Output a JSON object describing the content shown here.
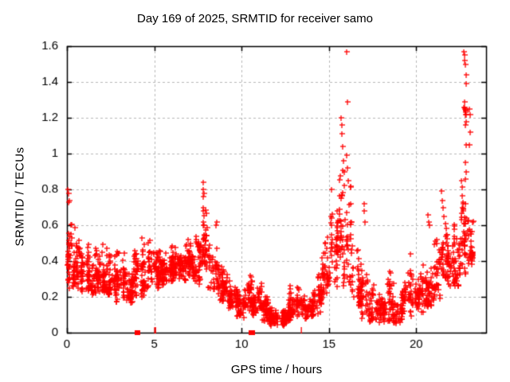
{
  "chart_data": {
    "type": "scatter",
    "title": "Day 169 of 2025, SRMTID for receiver samo",
    "xlabel": "GPS time / hours",
    "ylabel": "SRMTID / TECUs",
    "xlim": [
      0,
      24
    ],
    "ylim": [
      0,
      1.6
    ],
    "xticks": {
      "values": [
        0,
        5,
        10,
        15,
        20
      ],
      "labels": [
        "0",
        "5",
        "10",
        "15",
        "20"
      ]
    },
    "yticks": {
      "values": [
        0,
        0.2,
        0.4,
        0.6,
        0.8,
        1,
        1.2,
        1.4,
        1.6
      ],
      "labels": [
        "0",
        "0.2",
        "0.4",
        "0.6",
        "0.8",
        "1",
        "1.2",
        "1.4",
        "1.6"
      ]
    },
    "grid": true,
    "legend": "none",
    "colors": {
      "marker": "#ff0000",
      "grid": "#b8b8b8",
      "axis": "#000000",
      "background": "#ffffff",
      "text": "#000000"
    },
    "marker": {
      "symbol": "+",
      "size": 7
    },
    "seed": 169,
    "density_segments": [
      [
        0.0,
        0.3,
        0.22,
        0.68,
        40
      ],
      [
        0.3,
        0.8,
        0.24,
        0.6,
        55
      ],
      [
        0.8,
        1.3,
        0.22,
        0.52,
        55
      ],
      [
        1.3,
        1.8,
        0.2,
        0.5,
        55
      ],
      [
        1.8,
        2.3,
        0.22,
        0.56,
        55
      ],
      [
        2.3,
        2.8,
        0.2,
        0.47,
        50
      ],
      [
        2.8,
        3.3,
        0.17,
        0.5,
        50
      ],
      [
        3.3,
        3.8,
        0.15,
        0.44,
        48
      ],
      [
        3.8,
        4.3,
        0.17,
        0.48,
        48
      ],
      [
        4.3,
        4.8,
        0.2,
        0.55,
        50
      ],
      [
        4.8,
        5.3,
        0.24,
        0.5,
        52
      ],
      [
        5.3,
        5.8,
        0.26,
        0.54,
        55
      ],
      [
        5.8,
        6.3,
        0.27,
        0.58,
        58
      ],
      [
        6.3,
        6.8,
        0.28,
        0.53,
        58
      ],
      [
        6.8,
        7.3,
        0.3,
        0.56,
        58
      ],
      [
        7.3,
        7.8,
        0.27,
        0.66,
        50
      ],
      [
        7.8,
        8.1,
        0.3,
        0.82,
        35
      ],
      [
        8.1,
        8.7,
        0.24,
        0.62,
        45
      ],
      [
        8.7,
        9.2,
        0.17,
        0.42,
        48
      ],
      [
        9.2,
        9.7,
        0.11,
        0.33,
        48
      ],
      [
        9.7,
        10.2,
        0.08,
        0.3,
        48
      ],
      [
        10.2,
        10.6,
        0.1,
        0.42,
        42
      ],
      [
        10.6,
        11.1,
        0.08,
        0.28,
        48
      ],
      [
        11.1,
        11.6,
        0.05,
        0.24,
        52
      ],
      [
        11.6,
        12.2,
        0.04,
        0.16,
        62
      ],
      [
        12.2,
        12.7,
        0.04,
        0.15,
        62
      ],
      [
        12.7,
        13.1,
        0.06,
        0.4,
        48
      ],
      [
        13.1,
        13.6,
        0.08,
        0.3,
        42
      ],
      [
        13.6,
        14.1,
        0.08,
        0.24,
        42
      ],
      [
        14.1,
        14.6,
        0.1,
        0.36,
        42
      ],
      [
        14.6,
        15.1,
        0.15,
        0.62,
        45
      ],
      [
        15.1,
        15.6,
        0.25,
        0.84,
        48
      ],
      [
        15.6,
        16.0,
        0.22,
        0.98,
        38
      ],
      [
        16.0,
        16.35,
        0.25,
        0.92,
        32
      ],
      [
        16.35,
        16.8,
        0.12,
        0.55,
        38
      ],
      [
        16.8,
        17.3,
        0.08,
        0.45,
        38
      ],
      [
        17.3,
        17.8,
        0.06,
        0.28,
        42
      ],
      [
        17.8,
        18.3,
        0.05,
        0.24,
        42
      ],
      [
        18.3,
        18.65,
        0.06,
        0.44,
        32
      ],
      [
        18.65,
        19.2,
        0.05,
        0.24,
        46
      ],
      [
        19.2,
        19.9,
        0.08,
        0.5,
        48
      ],
      [
        19.9,
        20.4,
        0.1,
        0.35,
        46
      ],
      [
        20.4,
        20.9,
        0.14,
        0.48,
        46
      ],
      [
        20.9,
        21.5,
        0.18,
        0.58,
        52
      ],
      [
        21.5,
        22.0,
        0.22,
        0.7,
        52
      ],
      [
        22.0,
        22.5,
        0.25,
        0.62,
        52
      ],
      [
        22.5,
        22.9,
        0.3,
        0.88,
        42
      ],
      [
        22.9,
        23.25,
        0.35,
        0.68,
        38
      ]
    ],
    "peak_points": [
      [
        0.05,
        0.8
      ],
      [
        0.09,
        0.78
      ],
      [
        0.12,
        0.74
      ],
      [
        0.1,
        0.73
      ],
      [
        7.78,
        0.8
      ],
      [
        7.82,
        0.84
      ],
      [
        7.86,
        0.78
      ],
      [
        7.8,
        0.76
      ],
      [
        8.55,
        0.6
      ],
      [
        8.6,
        0.62
      ],
      [
        15.7,
        1.2
      ],
      [
        15.72,
        1.16
      ],
      [
        15.75,
        1.11
      ],
      [
        15.78,
        1.04
      ],
      [
        15.82,
        0.96
      ],
      [
        15.86,
        0.9
      ],
      [
        16.02,
        1.57
      ],
      [
        16.04,
        1.29
      ],
      [
        16.0,
        0.99
      ],
      [
        16.06,
        0.92
      ],
      [
        16.1,
        0.85
      ],
      [
        17.0,
        0.72
      ],
      [
        17.03,
        0.68
      ],
      [
        17.06,
        0.62
      ],
      [
        20.68,
        0.66
      ],
      [
        20.72,
        0.62
      ],
      [
        20.75,
        0.6
      ],
      [
        21.45,
        0.79
      ],
      [
        21.5,
        0.74
      ],
      [
        21.55,
        0.7
      ],
      [
        21.6,
        0.65
      ],
      [
        22.74,
        1.57
      ],
      [
        22.78,
        1.55
      ],
      [
        22.76,
        1.52
      ],
      [
        22.8,
        1.5
      ],
      [
        22.84,
        1.44
      ],
      [
        22.86,
        1.39
      ],
      [
        22.78,
        1.29
      ],
      [
        22.74,
        1.26
      ],
      [
        22.77,
        1.25
      ],
      [
        22.8,
        1.24
      ],
      [
        22.82,
        1.23
      ],
      [
        22.85,
        1.22
      ],
      [
        22.79,
        1.26
      ],
      [
        22.81,
        1.25
      ],
      [
        22.83,
        1.24
      ],
      [
        22.8,
        1.22
      ],
      [
        22.84,
        1.18
      ],
      [
        22.81,
        1.16
      ],
      [
        22.86,
        1.05
      ],
      [
        22.8,
        0.95
      ],
      [
        22.84,
        0.9
      ],
      [
        22.82,
        0.86
      ],
      [
        23.05,
        1.25
      ],
      [
        23.08,
        1.22
      ],
      [
        23.08,
        1.12
      ],
      [
        23.06,
        1.05
      ]
    ],
    "zero_squares": [
      4.0,
      4.04,
      10.54,
      10.6,
      10.64
    ],
    "near_zero_ticks": [
      [
        5.0,
        0.012
      ],
      [
        5.06,
        0.012
      ],
      [
        13.4,
        0.012
      ]
    ]
  }
}
